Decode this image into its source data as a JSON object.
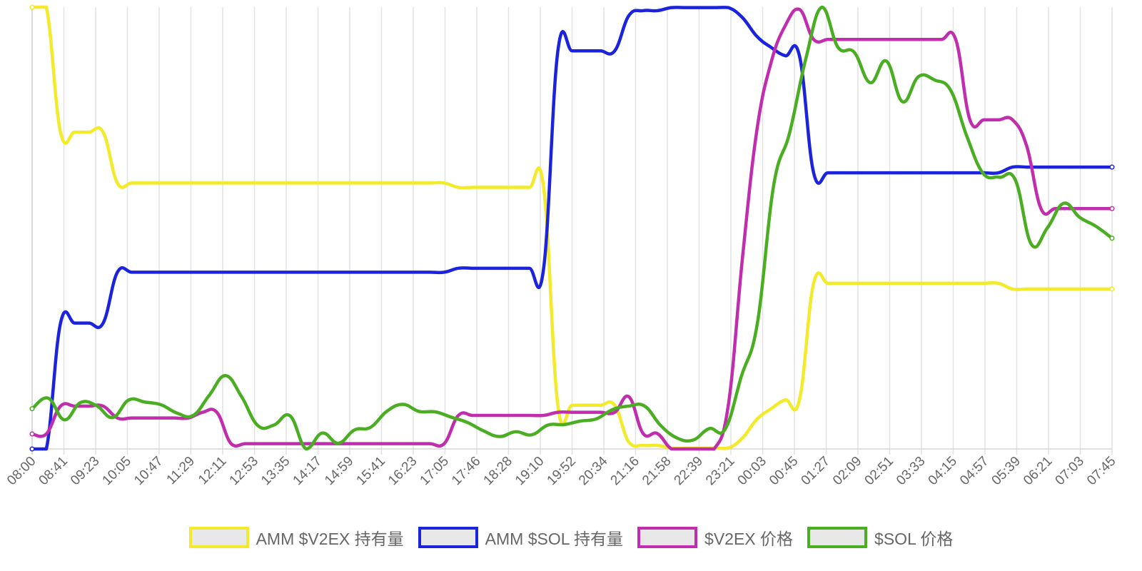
{
  "chart_data": {
    "type": "line",
    "title": "",
    "xlabel": "",
    "ylabel": "",
    "grid": true,
    "legend_position": "bottom",
    "x_tick_labels": [
      "08:00",
      "08:41",
      "09:23",
      "10:05",
      "10:47",
      "11:29",
      "12:11",
      "12:53",
      "13:35",
      "14:17",
      "14:59",
      "15:41",
      "16:23",
      "17:05",
      "17:46",
      "18:28",
      "19:10",
      "19:52",
      "20:34",
      "21:16",
      "21:58",
      "22:39",
      "23:21",
      "00:03",
      "00:45",
      "01:27",
      "02:09",
      "02:51",
      "03:33",
      "04:15",
      "04:57",
      "05:39",
      "06:21",
      "07:03",
      "07:45"
    ],
    "y_range": [
      0,
      100
    ],
    "series": [
      {
        "name": "AMM $V2EX 持有量",
        "color": "#f2ea2a",
        "values": [
          100,
          100,
          71.7,
          71.7,
          71.7,
          71.7,
          60.2,
          60.2,
          60.2,
          60.2,
          60.2,
          60.2,
          60.2,
          60.2,
          60.2,
          60.2,
          60.2,
          60.2,
          60.2,
          60.2,
          60.2,
          60.2,
          60.2,
          60.2,
          60.2,
          60.2,
          60.2,
          60.2,
          60.2,
          60.2,
          59.2,
          59.2,
          59.2,
          59.2,
          59.2,
          59.2,
          59.2,
          9.9,
          9.9,
          9.9,
          9.9,
          9.9,
          1.5,
          0.8,
          0.8,
          0.2,
          0.2,
          0.2,
          0.2,
          0.2,
          2.5,
          6.7,
          9.1,
          11.1,
          11.1,
          37.5,
          37.5,
          37.5,
          37.5,
          37.5,
          37.5,
          37.5,
          37.5,
          37.5,
          37.5,
          37.5,
          37.5,
          37.5,
          37.5,
          36.2,
          36.2,
          36.2,
          36.2,
          36.2,
          36.2,
          36.2,
          36.2
        ]
      },
      {
        "name": "AMM $SOL 持有量",
        "color": "#1b23dd",
        "values": [
          0,
          0,
          28.5,
          28.5,
          28.5,
          28.5,
          40,
          40,
          40,
          40,
          40,
          40,
          40,
          40,
          40,
          40,
          40,
          40,
          40,
          40,
          40,
          40,
          40,
          40,
          40,
          40,
          40,
          40,
          40,
          40,
          40.9,
          40.9,
          40.9,
          40.9,
          40.9,
          40.9,
          40.9,
          90.1,
          90.1,
          90.1,
          90.1,
          90.1,
          98.1,
          99.2,
          99.2,
          99.9,
          99.9,
          99.9,
          99.9,
          99.9,
          97.6,
          93.4,
          90.9,
          89,
          89,
          62.5,
          62.5,
          62.5,
          62.5,
          62.5,
          62.5,
          62.5,
          62.5,
          62.5,
          62.5,
          62.5,
          62.5,
          62.5,
          62.5,
          63.8,
          63.8,
          63.8,
          63.8,
          63.8,
          63.8,
          63.8,
          63.8
        ]
      },
      {
        "name": "$V2EX 价格",
        "color": "#c02eae",
        "values": [
          3.4,
          3.4,
          9.7,
          9.7,
          9.7,
          9.7,
          7,
          7,
          7,
          7,
          7,
          7,
          8.3,
          8.3,
          1.2,
          1.2,
          1.2,
          1.2,
          1.2,
          1.2,
          1.2,
          1.2,
          1.2,
          1.2,
          1.2,
          1.2,
          1.2,
          1.2,
          1.2,
          1.2,
          7.6,
          7.6,
          7.6,
          7.6,
          7.6,
          7.6,
          7.6,
          8.3,
          8.3,
          8.3,
          8.3,
          8.3,
          11.8,
          3.5,
          3.5,
          0,
          0,
          0,
          0,
          10,
          43.5,
          72,
          87.4,
          95.8,
          99.5,
          92.7,
          92.7,
          92.7,
          92.7,
          92.7,
          92.7,
          92.7,
          92.7,
          92.7,
          92.7,
          92.7,
          74.5,
          74.5,
          74.5,
          74.5,
          68.5,
          54.4,
          54.4,
          54.4,
          54.4,
          54.4,
          54.4
        ]
      },
      {
        "name": "$SOL 价格",
        "color": "#4aad22",
        "values": [
          9.1,
          11.5,
          6.6,
          10.5,
          9.8,
          7.1,
          11.1,
          10.6,
          10,
          8.1,
          7.6,
          12.2,
          16.6,
          11.8,
          5.3,
          5.4,
          7.5,
          0,
          3.6,
          1.3,
          4.3,
          4.9,
          8.5,
          10.1,
          8.5,
          8.4,
          7.2,
          6,
          4.1,
          2.8,
          3.9,
          3.2,
          5.4,
          5.5,
          6.3,
          6.8,
          8.9,
          9.7,
          9.7,
          5.3,
          2.5,
          2,
          4.6,
          4.5,
          16.4,
          28.5,
          59.5,
          71.6,
          88.3,
          100,
          90.9,
          89.8,
          82.9,
          87.8,
          78.6,
          84.3,
          83.5,
          81.1,
          70.7,
          62.4,
          61.5,
          60.9,
          46.3,
          50.1,
          55.6,
          52.4,
          50.4,
          47.7
        ]
      }
    ]
  }
}
